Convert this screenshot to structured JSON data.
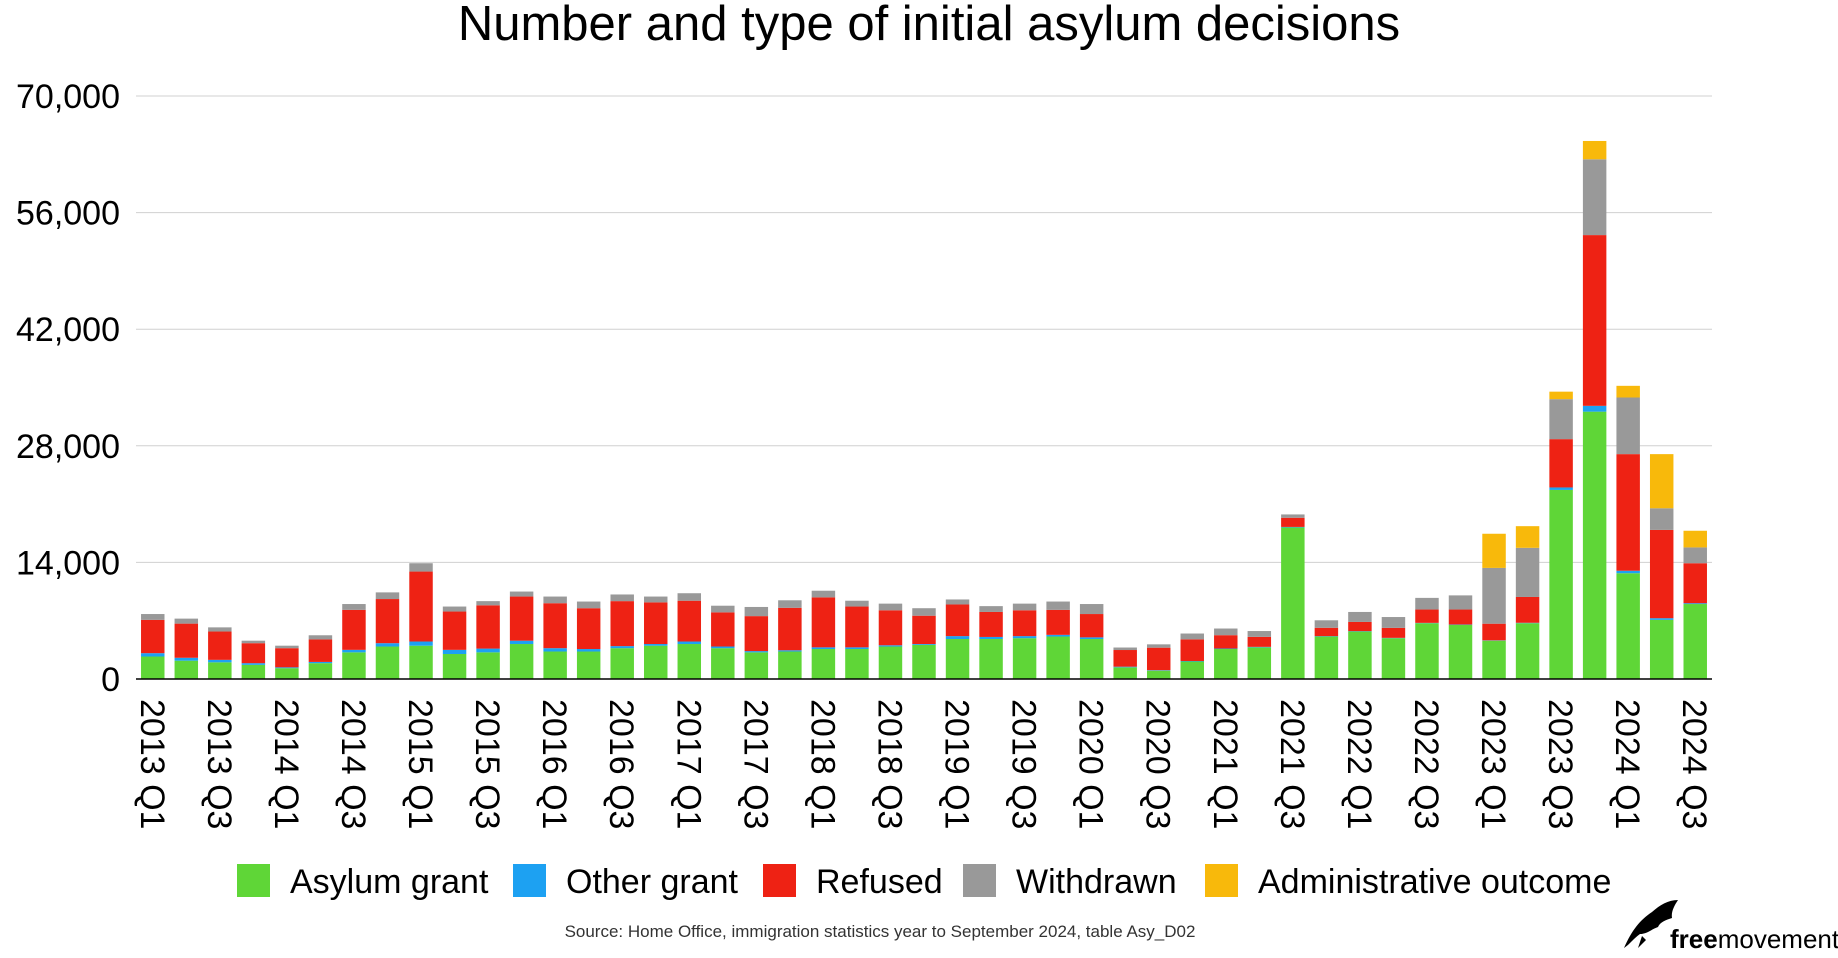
{
  "title": "Number and type of initial asylum decisions",
  "source": "Source: Home Office, immigration statistics year to September 2024, table Asy_D02",
  "brand": {
    "bold": "free",
    "regular": "movement"
  },
  "colors": {
    "Asylum grant": "#5fd637",
    "Other grant": "#1da1f2",
    "Refused": "#ee2214",
    "Withdrawn": "#999999",
    "Administrative outcome": "#f8b90b",
    "grid": "#d0d0d0",
    "axis": "#000000"
  },
  "chart_data": {
    "type": "bar",
    "stacked": true,
    "title": "Number and type of initial asylum decisions",
    "xlabel": "",
    "ylabel": "",
    "ylim": [
      0,
      70000
    ],
    "yticks": [
      0,
      14000,
      28000,
      42000,
      56000,
      70000
    ],
    "ytick_labels": [
      "0",
      "14,000",
      "28,000",
      "42,000",
      "56,000",
      "70,000"
    ],
    "grid": true,
    "legend": "bottom",
    "categories": [
      "2013 Q1",
      "2013 Q2",
      "2013 Q3",
      "2013 Q4",
      "2014 Q1",
      "2014 Q2",
      "2014 Q3",
      "2014 Q4",
      "2015 Q1",
      "2015 Q2",
      "2015 Q3",
      "2015 Q4",
      "2016 Q1",
      "2016 Q2",
      "2016 Q3",
      "2016 Q4",
      "2017 Q1",
      "2017 Q2",
      "2017 Q3",
      "2017 Q4",
      "2018 Q1",
      "2018 Q2",
      "2018 Q3",
      "2018 Q4",
      "2019 Q1",
      "2019 Q2",
      "2019 Q3",
      "2019 Q4",
      "2020 Q1",
      "2020 Q2",
      "2020 Q3",
      "2020 Q4",
      "2021 Q1",
      "2021 Q2",
      "2021 Q3",
      "2021 Q4",
      "2022 Q1",
      "2022 Q2",
      "2022 Q3",
      "2022 Q4",
      "2023 Q1",
      "2023 Q2",
      "2023 Q3",
      "2023 Q4",
      "2024 Q1",
      "2024 Q2",
      "2024 Q3"
    ],
    "category_labels_shown": [
      "2013 Q1",
      "2013 Q3",
      "2014 Q1",
      "2014 Q3",
      "2015 Q1",
      "2015 Q3",
      "2016 Q1",
      "2016 Q3",
      "2017 Q1",
      "2017 Q3",
      "2018 Q1",
      "2018 Q3",
      "2019 Q1",
      "2019 Q3",
      "2020 Q1",
      "2020 Q3",
      "2021 Q1",
      "2021 Q3",
      "2022 Q1",
      "2022 Q3",
      "2023 Q1",
      "2023 Q3",
      "2024 Q1",
      "2024 Q3"
    ],
    "series": [
      {
        "name": "Asylum grant",
        "values": [
          2700,
          2200,
          2000,
          1700,
          1300,
          1900,
          3200,
          3900,
          4000,
          3000,
          3200,
          4200,
          3300,
          3300,
          3700,
          4000,
          4200,
          3700,
          3200,
          3300,
          3600,
          3600,
          3900,
          4100,
          4800,
          4800,
          4900,
          5100,
          4800,
          1400,
          1000,
          2100,
          3600,
          3800,
          18200,
          5100,
          5700,
          4900,
          6700,
          6500,
          4600,
          6700,
          22700,
          32100,
          12700,
          7100,
          9000
        ]
      },
      {
        "name": "Other grant",
        "values": [
          400,
          350,
          300,
          200,
          100,
          150,
          300,
          400,
          500,
          500,
          450,
          400,
          400,
          300,
          250,
          200,
          300,
          200,
          150,
          150,
          200,
          200,
          150,
          100,
          350,
          250,
          250,
          200,
          200,
          80,
          60,
          60,
          60,
          60,
          60,
          50,
          50,
          40,
          40,
          40,
          40,
          50,
          300,
          700,
          300,
          200,
          100
        ]
      },
      {
        "name": "Refused",
        "values": [
          4000,
          4100,
          3400,
          2400,
          2300,
          2700,
          4800,
          5300,
          8400,
          4600,
          5200,
          5300,
          5400,
          4900,
          5400,
          5000,
          4900,
          4100,
          4200,
          5100,
          6000,
          4900,
          4200,
          3400,
          3800,
          3000,
          3100,
          3000,
          2800,
          2000,
          2700,
          2600,
          1600,
          1200,
          1100,
          1000,
          1100,
          1200,
          1600,
          1800,
          2000,
          3100,
          5800,
          20500,
          14000,
          10600,
          4800
        ]
      },
      {
        "name": "Withdrawn",
        "values": [
          700,
          600,
          500,
          300,
          300,
          500,
          700,
          800,
          1000,
          600,
          500,
          600,
          800,
          800,
          800,
          700,
          900,
          800,
          1100,
          900,
          800,
          700,
          800,
          900,
          600,
          700,
          800,
          1000,
          1200,
          300,
          400,
          700,
          800,
          700,
          400,
          900,
          1200,
          1300,
          1400,
          1700,
          6700,
          5900,
          4800,
          9100,
          6800,
          2600,
          1900
        ]
      },
      {
        "name": "Administrative outcome",
        "values": [
          0,
          0,
          0,
          0,
          0,
          0,
          0,
          0,
          0,
          0,
          0,
          0,
          0,
          0,
          0,
          0,
          0,
          0,
          0,
          0,
          0,
          0,
          0,
          0,
          0,
          0,
          0,
          0,
          0,
          0,
          0,
          0,
          0,
          0,
          0,
          0,
          0,
          0,
          0,
          0,
          4100,
          2600,
          900,
          2200,
          1400,
          6500,
          2000
        ]
      }
    ]
  }
}
